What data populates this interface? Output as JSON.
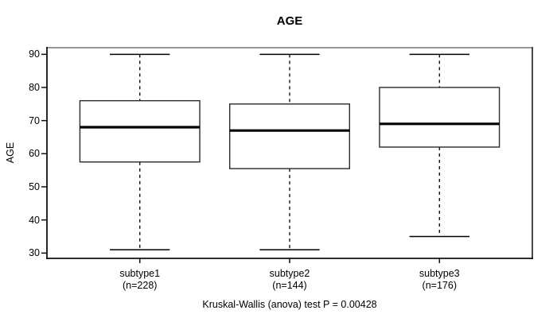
{
  "chart_data": {
    "type": "boxplot",
    "title": "AGE",
    "ylabel": "AGE",
    "xlabel": "",
    "ylim": [
      28.4,
      92.0
    ],
    "yticks": [
      90,
      80,
      70,
      60,
      50,
      40,
      30
    ],
    "grid": false,
    "legend": false,
    "annotation": "Kruskal-Wallis (anova) test P = 0.00428",
    "groups": [
      {
        "label": "subtype1",
        "n_label": "(n=228)",
        "n": 228,
        "stats": {
          "whisker_low": 31,
          "q1": 57.5,
          "median": 68,
          "q3": 76,
          "whisker_high": 90
        }
      },
      {
        "label": "subtype2",
        "n_label": "(n=144)",
        "n": 144,
        "stats": {
          "whisker_low": 31,
          "q1": 55.5,
          "median": 67,
          "q3": 75,
          "whisker_high": 90
        }
      },
      {
        "label": "subtype3",
        "n_label": "(n=176)",
        "n": 176,
        "stats": {
          "whisker_low": 35,
          "q1": 62,
          "median": 69,
          "q3": 80,
          "whisker_high": 90
        }
      }
    ],
    "colors": {
      "line": "#000000",
      "box_fill": "#ffffff",
      "frame_top": "#999999",
      "frame_side": "#333333",
      "frame": "#111111",
      "background": "#ffffff"
    }
  }
}
